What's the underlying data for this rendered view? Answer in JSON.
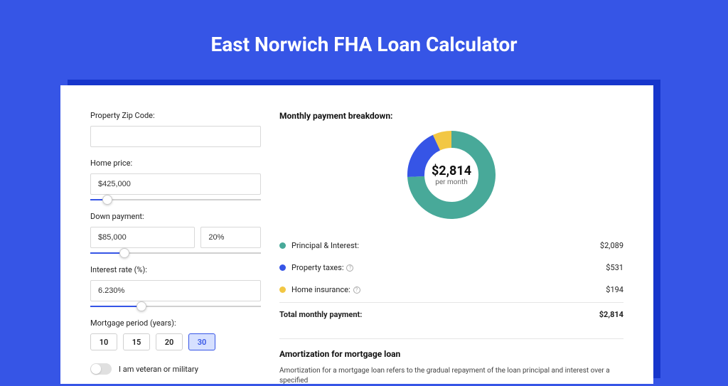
{
  "page": {
    "title": "East Norwich FHA Loan Calculator",
    "background_color": "#3655e6",
    "shadow_color": "#1736cc",
    "panel_color": "#ffffff"
  },
  "form": {
    "zip": {
      "label": "Property Zip Code:",
      "value": ""
    },
    "home_price": {
      "label": "Home price:",
      "value": "$425,000",
      "slider_pct": 10
    },
    "down_payment": {
      "label": "Down payment:",
      "amount": "$85,000",
      "percent": "20%",
      "slider_pct": 20
    },
    "interest_rate": {
      "label": "Interest rate (%):",
      "value": "6.230%",
      "slider_pct": 30
    },
    "mortgage_period": {
      "label": "Mortgage period (years):",
      "options": [
        "10",
        "15",
        "20",
        "30"
      ],
      "selected_index": 3
    },
    "veteran": {
      "label": "I am veteran or military",
      "checked": false
    }
  },
  "breakdown": {
    "title": "Monthly payment breakdown:",
    "donut": {
      "amount": "$2,814",
      "sub": "per month",
      "size": 124,
      "thickness": 24,
      "series": [
        {
          "label": "Principal & Interest:",
          "value_label": "$2,089",
          "value": 2089,
          "color": "#48a999",
          "has_info": false
        },
        {
          "label": "Property taxes:",
          "value_label": "$531",
          "value": 531,
          "color": "#3655e6",
          "has_info": true
        },
        {
          "label": "Home insurance:",
          "value_label": "$194",
          "value": 194,
          "color": "#f2c744",
          "has_info": true
        }
      ]
    },
    "total": {
      "label": "Total monthly payment:",
      "value": "$2,814"
    }
  },
  "amortization": {
    "title": "Amortization for mortgage loan",
    "text": "Amortization for a mortgage loan refers to the gradual repayment of the loan principal and interest over a specified"
  }
}
